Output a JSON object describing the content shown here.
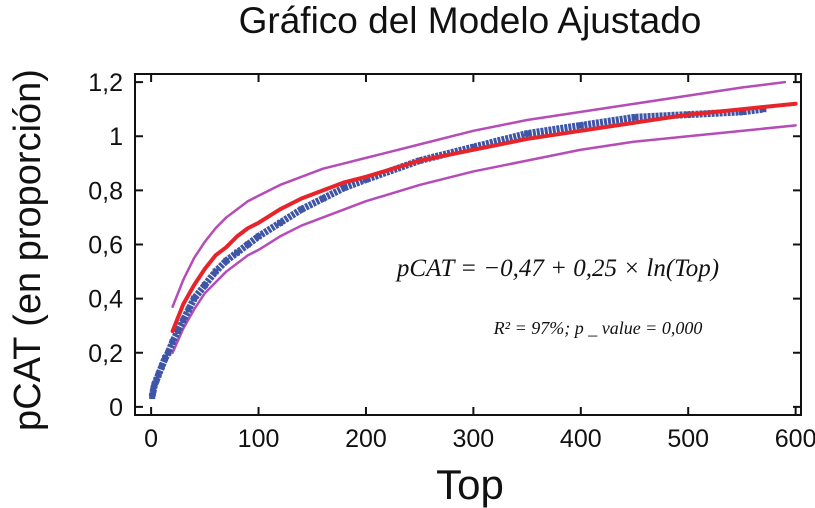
{
  "chart_data": {
    "type": "line",
    "title": "Gráfico del Modelo Ajustado",
    "xlabel": "Top",
    "ylabel": "pCAT (en proporción)",
    "xlim": [
      -15,
      605
    ],
    "ylim": [
      -0.03,
      1.23
    ],
    "xticks": [
      0,
      100,
      200,
      300,
      400,
      500,
      600
    ],
    "xtick_labels": [
      "0",
      "100",
      "200",
      "300",
      "400",
      "500",
      "600"
    ],
    "yticks": [
      0,
      0.2,
      0.4,
      0.6,
      0.8,
      1.0,
      1.2
    ],
    "ytick_labels": [
      "0",
      "0,2",
      "0,4",
      "0,6",
      "0,8",
      "1",
      "1,2"
    ],
    "grid": false,
    "annotations": {
      "equation": "pCAT = −0,47 + 0,25 × ln(Top)",
      "r2": "R² = 97%; p _ value = 0,000"
    },
    "series": [
      {
        "role": "observed",
        "style": "square-markers",
        "color": "#3f55a5",
        "x": [
          1,
          2,
          3,
          5,
          7,
          10,
          13,
          16,
          20,
          25,
          30,
          35,
          40,
          50,
          60,
          70,
          80,
          90,
          100,
          120,
          140,
          160,
          180,
          200,
          250,
          300,
          350,
          400,
          450,
          500,
          550,
          570
        ],
        "y": [
          0.04,
          0.06,
          0.08,
          0.1,
          0.12,
          0.15,
          0.18,
          0.2,
          0.24,
          0.28,
          0.32,
          0.36,
          0.4,
          0.45,
          0.5,
          0.54,
          0.57,
          0.6,
          0.63,
          0.68,
          0.73,
          0.77,
          0.81,
          0.84,
          0.91,
          0.96,
          1.01,
          1.04,
          1.07,
          1.08,
          1.09,
          1.1
        ]
      },
      {
        "role": "fitted",
        "style": "line",
        "color": "#e8242b",
        "x": [
          20,
          30,
          40,
          50,
          60,
          70,
          80,
          90,
          100,
          120,
          140,
          160,
          180,
          200,
          250,
          300,
          350,
          400,
          450,
          500,
          550,
          600
        ],
        "y": [
          0.28,
          0.38,
          0.45,
          0.51,
          0.56,
          0.59,
          0.63,
          0.66,
          0.68,
          0.73,
          0.77,
          0.8,
          0.83,
          0.85,
          0.91,
          0.95,
          0.99,
          1.02,
          1.05,
          1.08,
          1.1,
          1.12
        ]
      },
      {
        "role": "upper-band",
        "style": "line",
        "color": "#b64cb7",
        "x": [
          20,
          30,
          40,
          50,
          60,
          70,
          80,
          90,
          100,
          120,
          140,
          160,
          180,
          200,
          250,
          300,
          350,
          400,
          450,
          500,
          550,
          590
        ],
        "y": [
          0.37,
          0.47,
          0.55,
          0.61,
          0.66,
          0.7,
          0.73,
          0.76,
          0.78,
          0.82,
          0.85,
          0.88,
          0.9,
          0.92,
          0.97,
          1.02,
          1.06,
          1.09,
          1.12,
          1.15,
          1.18,
          1.2
        ]
      },
      {
        "role": "lower-band",
        "style": "line",
        "color": "#b64cb7",
        "x": [
          20,
          30,
          40,
          50,
          60,
          70,
          80,
          90,
          100,
          120,
          140,
          160,
          180,
          200,
          250,
          300,
          350,
          400,
          450,
          500,
          550,
          600
        ],
        "y": [
          0.2,
          0.29,
          0.36,
          0.42,
          0.46,
          0.5,
          0.53,
          0.56,
          0.58,
          0.63,
          0.67,
          0.7,
          0.73,
          0.76,
          0.82,
          0.87,
          0.91,
          0.95,
          0.98,
          1.0,
          1.02,
          1.04
        ]
      }
    ]
  }
}
